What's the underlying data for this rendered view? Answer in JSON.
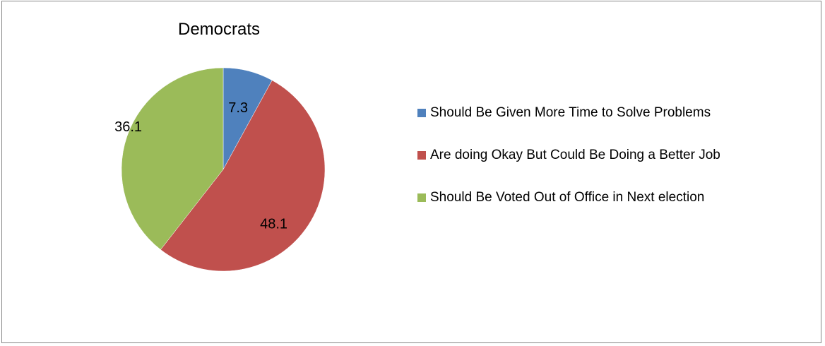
{
  "chart_data": {
    "type": "pie",
    "title": "Democrats",
    "slices": [
      {
        "label": "Should Be Given More Time to Solve Problems",
        "value": 7.3,
        "color": "#4F81BD"
      },
      {
        "label": "Are doing Okay But Could Be Doing a Better Job",
        "value": 48.1,
        "color": "#C0504D"
      },
      {
        "label": "Should Be Voted Out of Office in Next election",
        "value": 36.1,
        "color": "#9BBB59"
      }
    ],
    "data_labels": true,
    "legend_position": "right"
  }
}
